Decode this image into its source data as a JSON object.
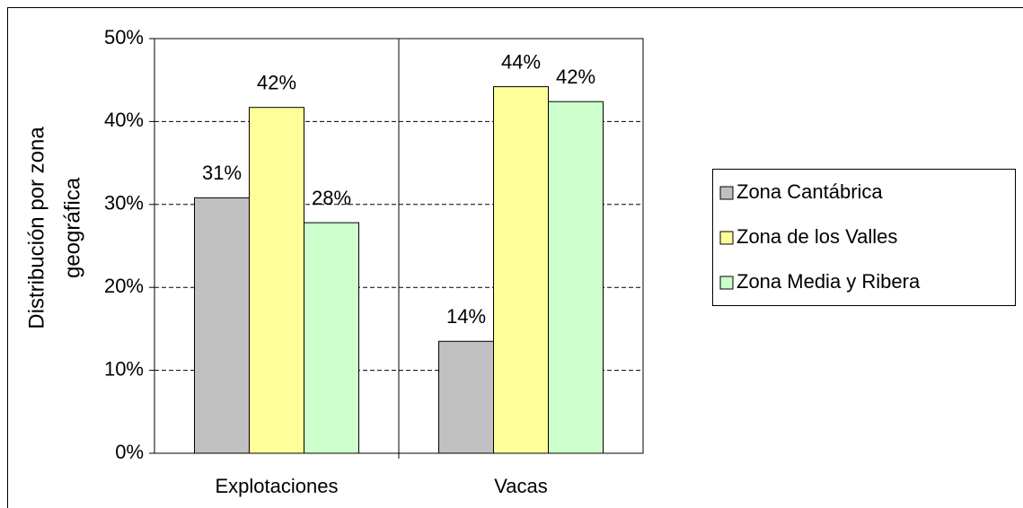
{
  "chart_data": {
    "type": "bar",
    "y_label": [
      "Distribución por zona",
      "geográfica"
    ],
    "categories": [
      "Explotaciones",
      "Vacas"
    ],
    "series": [
      {
        "name": "Zona Cantábrica",
        "color": "#c0c0c0",
        "values": [
          30.8,
          13.5
        ],
        "value_labels": [
          "31%",
          "14%"
        ]
      },
      {
        "name": "Zona de los Valles",
        "color": "#ffff99",
        "values": [
          41.7,
          44.2
        ],
        "value_labels": [
          "42%",
          "44%"
        ]
      },
      {
        "name": "Zona Media y Ribera",
        "color": "#ccffcc",
        "values": [
          27.8,
          42.4
        ],
        "value_labels": [
          "28%",
          "42%"
        ]
      }
    ],
    "ylim": [
      0,
      50
    ],
    "yticks": [
      {
        "value": 0,
        "label": "0%"
      },
      {
        "value": 10,
        "label": "10%"
      },
      {
        "value": 20,
        "label": "20%"
      },
      {
        "value": 30,
        "label": "30%"
      },
      {
        "value": 40,
        "label": "40%"
      },
      {
        "value": 50,
        "label": "50%"
      }
    ],
    "grid": true,
    "legend": "right"
  }
}
